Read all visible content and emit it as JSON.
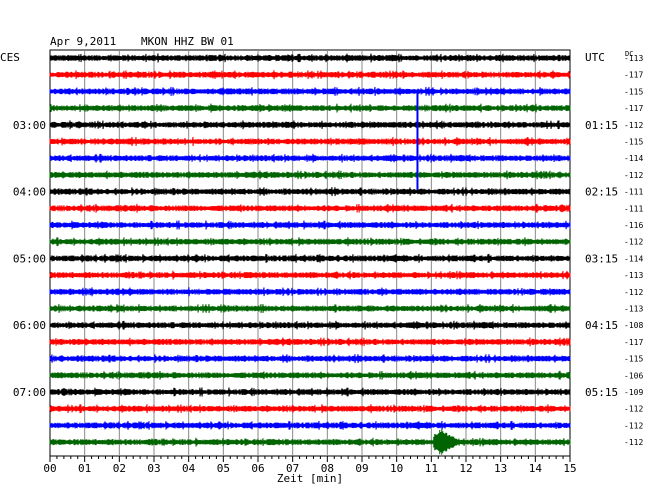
{
  "header": {
    "date": "Apr 9,2011",
    "station": "MKON HHZ BW 01",
    "left_zone": "CES",
    "right_zone": "UTC",
    "dc_label": "DC"
  },
  "chart_data": {
    "type": "seismogram-helicorder",
    "xlabel": "Zeit [min]",
    "x_ticks": [
      "00",
      "01",
      "02",
      "03",
      "04",
      "05",
      "06",
      "07",
      "08",
      "09",
      "10",
      "11",
      "12",
      "13",
      "14",
      "15"
    ],
    "xlim": [
      0,
      15
    ],
    "trace_colors": [
      "#000000",
      "#ff0000",
      "#0000ff",
      "#006400"
    ],
    "left_time_labels": [
      {
        "trace": 4,
        "text": "03:00"
      },
      {
        "trace": 8,
        "text": "04:00"
      },
      {
        "trace": 12,
        "text": "05:00"
      },
      {
        "trace": 16,
        "text": "06:00"
      },
      {
        "trace": 20,
        "text": "07:00"
      }
    ],
    "right_time_labels": [
      {
        "trace": 4,
        "text": "01:15"
      },
      {
        "trace": 8,
        "text": "02:15"
      },
      {
        "trace": 12,
        "text": "03:15"
      },
      {
        "trace": 16,
        "text": "04:15"
      },
      {
        "trace": 20,
        "text": "05:15"
      }
    ],
    "dc_offsets": [
      "-113",
      "-117",
      "-115",
      "-117",
      "-112",
      "-115",
      "-114",
      "-112",
      "-111",
      "-111",
      "-116",
      "-112",
      "-114",
      "-113",
      "-112",
      "-113",
      "-108",
      "-117",
      "-115",
      "-106",
      "-109",
      "-112",
      "-112",
      "-112"
    ],
    "events": [
      {
        "trace": 4,
        "minute": 10.6,
        "amplitude": "large spike"
      },
      {
        "trace": 23,
        "minute": 11.3,
        "amplitude": "burst"
      }
    ]
  }
}
